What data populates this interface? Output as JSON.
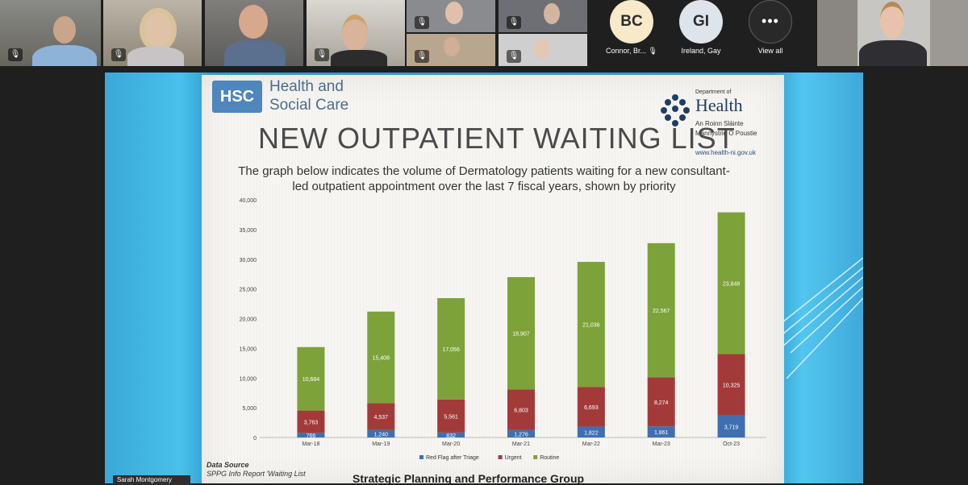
{
  "participants": {
    "avatars": [
      {
        "initials": "BC",
        "name": "Connor, Br...",
        "color": "#f7e9c9"
      },
      {
        "initials": "GI",
        "name": "Ireland, Gay",
        "color": "#dfe3ea"
      }
    ],
    "view_all_label": "View all",
    "more_glyph": "•••",
    "presenter_name": "Sarah Montgomery"
  },
  "slide": {
    "hsc_logo": "HSC",
    "hsc_line1": "Health and",
    "hsc_line2": "Social Care",
    "doh_top": "Department of",
    "doh_name": "Health",
    "doh_sub1": "An Roinn Sláinte",
    "doh_sub2": "Männystrie O Poustie",
    "doh_url": "www.health-ni.gov.uk",
    "title": "NEW OUTPATIENT WAITING LIST",
    "subtitle": "The graph below indicates the volume of Dermatology patients waiting for a new consultant-led outpatient appointment over the last 7 fiscal years, shown by priority",
    "data_source_label": "Data Source",
    "data_source_text": "SPPG Info Report 'Waiting List",
    "footer": "Strategic Planning and Performance Group"
  },
  "chart_data": {
    "type": "bar",
    "stacked": true,
    "categories": [
      "Mar-18",
      "Mar-19",
      "Mar-20",
      "Mar-21",
      "Mar-22",
      "Mar-23",
      "Oct-23"
    ],
    "series": [
      {
        "name": "Red Flag after Triage",
        "color": "#3f6fb0",
        "values": [
          766,
          1240,
          832,
          1276,
          1822,
          1861,
          3719
        ],
        "labels": [
          "766",
          "1,240",
          "832",
          "1,276",
          "1,822",
          "1,861",
          "3,719"
        ]
      },
      {
        "name": "Urgent",
        "color": "#a33a3a",
        "values": [
          3763,
          4537,
          5561,
          6803,
          6693,
          8274,
          10325
        ],
        "labels": [
          "3,763",
          "4,537",
          "5,561",
          "6,803",
          "6,693",
          "8,274",
          "10,325"
        ]
      },
      {
        "name": "Routine",
        "color": "#7da23a",
        "values": [
          10684,
          15408,
          17056,
          18907,
          21036,
          22567,
          23848
        ],
        "labels": [
          "10,684",
          "15,408",
          "17,056",
          "18,907",
          "21,036",
          "22,567",
          "23,848"
        ]
      }
    ],
    "yticks": [
      "0",
      "5,000",
      "10,000",
      "15,000",
      "20,000",
      "25,000",
      "30,000",
      "35,000",
      "40,000"
    ],
    "ylim": [
      0,
      40000
    ],
    "legend_position": "bottom"
  }
}
